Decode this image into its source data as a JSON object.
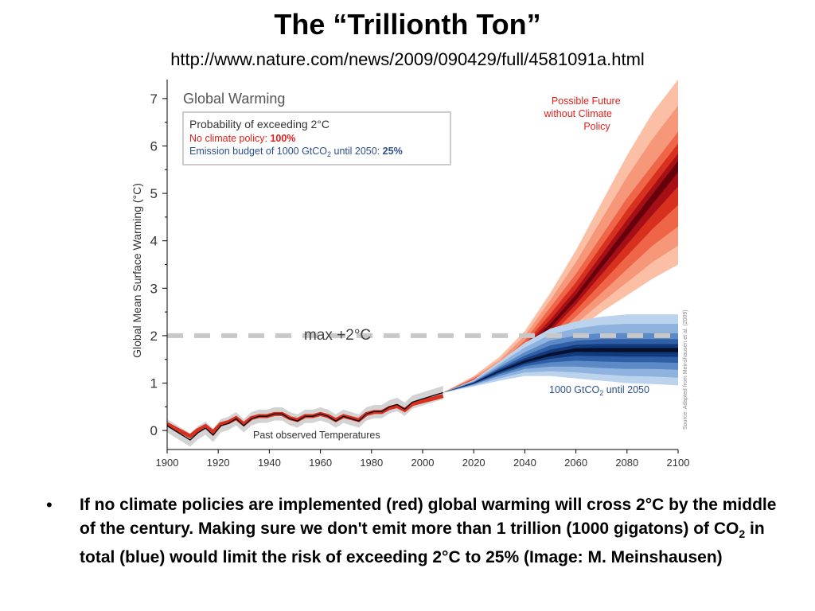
{
  "slide": {
    "title": "The “Trillionth Ton”",
    "url": "http://www.nature.com/news/2009/090429/full/4581091a.html",
    "bullet_before_sub": "If no climate policies are implemented (red) global warming will cross 2°C by the middle of the century. Making sure we don't emit more than 1 trillion (1000 gigatons) of CO",
    "bullet_sub": "2",
    "bullet_after_sub": " in total (blue) would limit the risk of exceeding 2°C to 25% (Image: M. Meinshausen)"
  },
  "chart_data": {
    "type": "area",
    "title": "Global Warming",
    "ylabel": "Global Mean Surface Warming (°C)",
    "xlabel": "",
    "xlim": [
      1900,
      2100
    ],
    "ylim": [
      -0.4,
      7.4
    ],
    "x_ticks": [
      1900,
      1920,
      1940,
      1960,
      1980,
      2000,
      2020,
      2040,
      2060,
      2080,
      2100
    ],
    "y_ticks": [
      0,
      1,
      2,
      3,
      4,
      5,
      6,
      7
    ],
    "legend_box": {
      "heading": "Probability of exceeding 2°C",
      "line_red_label": "No climate policy: ",
      "line_red_value": "100%",
      "line_blue_label": "Emission budget of 1000 GtCO",
      "line_blue_sub": "2",
      "line_blue_suffix": " until 2050: ",
      "line_blue_value": "25%"
    },
    "threshold": {
      "y": 2,
      "label": "max +2°C"
    },
    "annotations": {
      "red_label": [
        "Possible Future",
        "without Climate",
        "Policy"
      ],
      "blue_label_prefix": "1000 GtCO",
      "blue_label_sub": "2",
      "blue_label_suffix": " until 2050",
      "observed_label": "Past observed Temperatures",
      "source": "Source: Adapted from Meinshausen et al. (2009)"
    },
    "series": [
      {
        "name": "Possible Future without Climate Policy",
        "x": [
          2008,
          2020,
          2030,
          2040,
          2050,
          2060,
          2070,
          2080,
          2090,
          2100
        ],
        "median": [
          0.8,
          1.05,
          1.3,
          1.7,
          2.2,
          2.8,
          3.5,
          4.2,
          4.9,
          5.6
        ],
        "range_inner_low": [
          0.8,
          1.0,
          1.2,
          1.5,
          1.9,
          2.4,
          2.9,
          3.4,
          3.9,
          4.3
        ],
        "range_inner_high": [
          0.8,
          1.1,
          1.4,
          1.9,
          2.6,
          3.3,
          4.1,
          4.9,
          5.6,
          6.3
        ],
        "range_outer_low": [
          0.8,
          0.95,
          1.1,
          1.35,
          1.7,
          2.1,
          2.5,
          2.85,
          3.2,
          3.5
        ],
        "range_outer_high": [
          0.8,
          1.15,
          1.55,
          2.1,
          2.9,
          3.8,
          4.8,
          5.8,
          6.7,
          7.4
        ],
        "color": "#a50f15"
      },
      {
        "name": "1000 GtCO2 until 2050",
        "x": [
          2008,
          2020,
          2030,
          2040,
          2050,
          2060,
          2070,
          2080,
          2090,
          2100
        ],
        "median": [
          0.8,
          1.0,
          1.25,
          1.45,
          1.6,
          1.7,
          1.7,
          1.7,
          1.7,
          1.7
        ],
        "range_inner_low": [
          0.8,
          0.97,
          1.15,
          1.3,
          1.35,
          1.35,
          1.32,
          1.3,
          1.3,
          1.28
        ],
        "range_inner_high": [
          0.8,
          1.03,
          1.35,
          1.65,
          1.9,
          2.0,
          2.05,
          2.05,
          2.05,
          2.05
        ],
        "range_outer_low": [
          0.8,
          0.93,
          1.05,
          1.15,
          1.15,
          1.1,
          1.05,
          1.0,
          0.98,
          0.95
        ],
        "range_outer_high": [
          0.8,
          1.07,
          1.45,
          1.85,
          2.15,
          2.3,
          2.4,
          2.45,
          2.45,
          2.45
        ],
        "color": "#08306b"
      },
      {
        "name": "Past observed Temperatures",
        "x": [
          1900,
          1903,
          1906,
          1909,
          1912,
          1915,
          1918,
          1921,
          1924,
          1927,
          1930,
          1933,
          1936,
          1939,
          1942,
          1945,
          1948,
          1951,
          1954,
          1957,
          1960,
          1963,
          1966,
          1969,
          1972,
          1975,
          1978,
          1981,
          1984,
          1987,
          1990,
          1993,
          1996,
          1999,
          2002,
          2005,
          2008
        ],
        "values": [
          0.1,
          0.0,
          -0.1,
          -0.2,
          -0.05,
          0.05,
          -0.1,
          0.1,
          0.15,
          0.25,
          0.1,
          0.25,
          0.3,
          0.3,
          0.35,
          0.35,
          0.25,
          0.2,
          0.3,
          0.3,
          0.35,
          0.3,
          0.2,
          0.3,
          0.25,
          0.2,
          0.35,
          0.4,
          0.4,
          0.5,
          0.55,
          0.45,
          0.6,
          0.65,
          0.7,
          0.75,
          0.8
        ],
        "color": "#000000"
      }
    ]
  }
}
